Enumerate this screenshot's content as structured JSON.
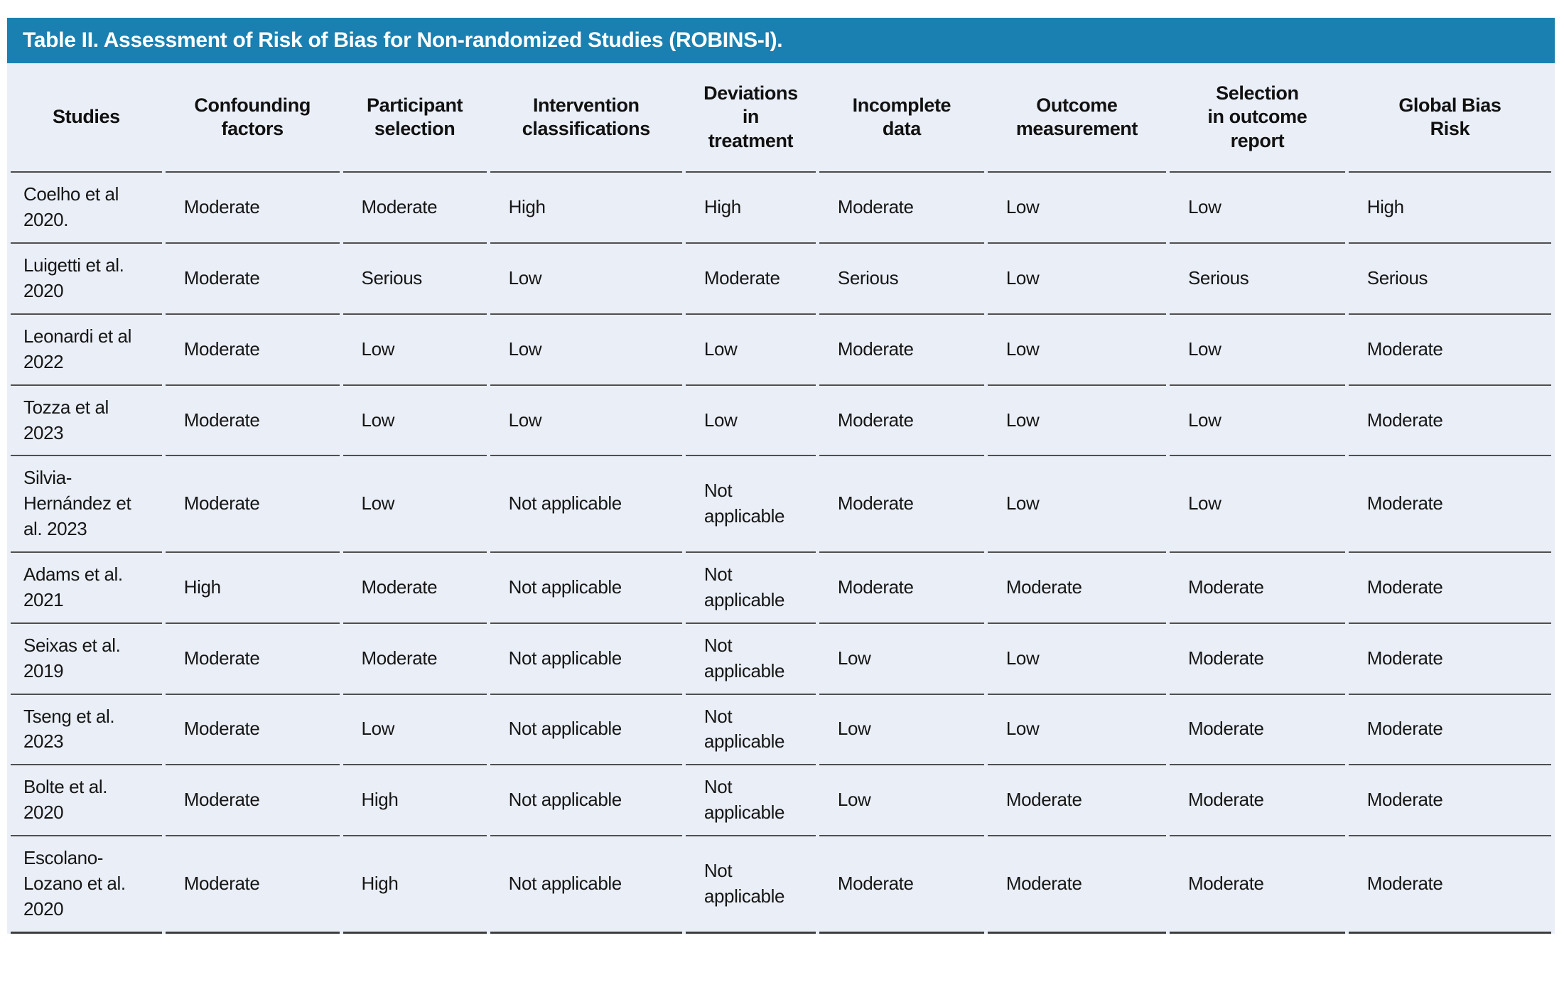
{
  "title": "Table II. Assessment of Risk of Bias for Non-randomized Studies (ROBINS-I).",
  "colors": {
    "title_bar_background": "#1A80B1",
    "title_text": "#FFFFFF",
    "table_background": "#EAEFF7",
    "row_border": "#4F4F4F",
    "body_text": "#161616"
  },
  "table": {
    "columns": [
      {
        "id": "studies",
        "label": "Studies"
      },
      {
        "id": "confounding-factors",
        "label": "Confounding\nfactors"
      },
      {
        "id": "participant-selection",
        "label": "Participant\nselection"
      },
      {
        "id": "intervention-classifications",
        "label": "Intervention\nclassifications"
      },
      {
        "id": "deviations-in-treatment",
        "label": "Deviations\nin\ntreatment"
      },
      {
        "id": "incomplete-data",
        "label": "Incomplete\ndata"
      },
      {
        "id": "outcome-measurement",
        "label": "Outcome\nmeasurement"
      },
      {
        "id": "selection-in-outcome-report",
        "label": "Selection\nin outcome\nreport"
      },
      {
        "id": "global-bias-risk",
        "label": "Global Bias\nRisk"
      }
    ],
    "rows": [
      {
        "study": "Coelho et al 2020.",
        "values": [
          "Moderate",
          "Moderate",
          "High",
          "High",
          "Moderate",
          "Low",
          "Low",
          "High"
        ]
      },
      {
        "study": "Luigetti et al. 2020",
        "values": [
          "Moderate",
          "Serious",
          "Low",
          "Moderate",
          "Serious",
          "Low",
          "Serious",
          "Serious"
        ]
      },
      {
        "study": "Leonardi et al 2022",
        "values": [
          "Moderate",
          "Low",
          "Low",
          "Low",
          "Moderate",
          "Low",
          "Low",
          "Moderate"
        ]
      },
      {
        "study": "Tozza et al 2023",
        "values": [
          "Moderate",
          "Low",
          "Low",
          "Low",
          "Moderate",
          "Low",
          "Low",
          "Moderate"
        ]
      },
      {
        "study": "Silvia-Hernández et al. 2023",
        "values": [
          "Moderate",
          "Low",
          "Not applicable",
          "Not applicable",
          "Moderate",
          "Low",
          "Low",
          "Moderate"
        ]
      },
      {
        "study": "Adams et al. 2021",
        "values": [
          "High",
          "Moderate",
          "Not applicable",
          "Not applicable",
          "Moderate",
          "Moderate",
          "Moderate",
          "Moderate"
        ]
      },
      {
        "study": "Seixas et al. 2019",
        "values": [
          "Moderate",
          "Moderate",
          "Not applicable",
          "Not applicable",
          "Low",
          "Low",
          "Moderate",
          "Moderate"
        ]
      },
      {
        "study": "Tseng et al. 2023",
        "values": [
          "Moderate",
          "Low",
          "Not applicable",
          "Not applicable",
          "Low",
          "Low",
          "Moderate",
          "Moderate"
        ]
      },
      {
        "study": "Bolte et al. 2020",
        "values": [
          "Moderate",
          "High",
          "Not applicable",
          "Not applicable",
          "Low",
          "Moderate",
          "Moderate",
          "Moderate"
        ]
      },
      {
        "study": "Escolano-Lozano et al. 2020",
        "values": [
          "Moderate",
          "High",
          "Not applicable",
          "Not applicable",
          "Moderate",
          "Moderate",
          "Moderate",
          "Moderate"
        ]
      }
    ]
  }
}
